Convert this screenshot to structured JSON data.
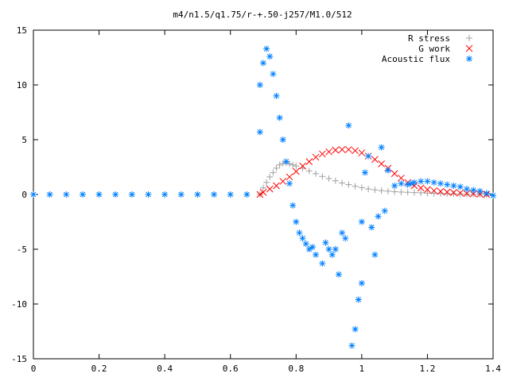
{
  "chart_data": {
    "type": "scatter",
    "title": "m4/n1.5/q1.75/r-+.50-j257/M1.0/512",
    "xlabel": "",
    "ylabel": "",
    "xlim": [
      0,
      1.4
    ],
    "ylim": [
      -15,
      15
    ],
    "x_ticks": [
      0,
      0.2,
      0.4,
      0.6,
      0.8,
      1,
      1.2,
      1.4
    ],
    "x_tick_labels": [
      "0",
      "0.2",
      "0.4",
      "0.6",
      "0.8",
      "1",
      "1.2",
      "1.4"
    ],
    "y_ticks": [
      -15,
      -10,
      -5,
      0,
      5,
      10,
      15
    ],
    "y_tick_labels": [
      "-15",
      "-10",
      "-5",
      "0",
      "5",
      "10",
      "15"
    ],
    "grid": false,
    "legend_position": "top-right",
    "series": [
      {
        "name": "R stress",
        "marker": "+",
        "color": "#a0a0a0",
        "x": [
          0.69,
          0.7,
          0.71,
          0.72,
          0.73,
          0.74,
          0.75,
          0.76,
          0.77,
          0.78,
          0.79,
          0.8,
          0.82,
          0.84,
          0.86,
          0.88,
          0.9,
          0.92,
          0.94,
          0.96,
          0.98,
          1.0,
          1.02,
          1.04,
          1.06,
          1.08,
          1.1,
          1.12,
          1.14,
          1.16,
          1.18,
          1.2,
          1.22,
          1.24,
          1.26,
          1.28,
          1.3,
          1.32,
          1.34,
          1.36,
          1.38
        ],
        "y": [
          0.0,
          0.6,
          1.1,
          1.6,
          2.0,
          2.4,
          2.7,
          2.85,
          2.9,
          2.8,
          2.7,
          2.6,
          2.4,
          2.15,
          1.9,
          1.65,
          1.45,
          1.25,
          1.05,
          0.9,
          0.75,
          0.62,
          0.5,
          0.42,
          0.35,
          0.3,
          0.25,
          0.22,
          0.2,
          0.17,
          0.15,
          0.12,
          0.1,
          0.08,
          0.06,
          0.05,
          0.04,
          0.03,
          0.02,
          0.01,
          0.0
        ]
      },
      {
        "name": "G work",
        "marker": "x",
        "color": "#ff0000",
        "x": [
          0.69,
          0.7,
          0.72,
          0.74,
          0.76,
          0.78,
          0.8,
          0.82,
          0.84,
          0.86,
          0.88,
          0.9,
          0.92,
          0.94,
          0.96,
          0.98,
          1.0,
          1.02,
          1.04,
          1.06,
          1.08,
          1.1,
          1.12,
          1.14,
          1.16,
          1.18,
          1.2,
          1.22,
          1.24,
          1.26,
          1.28,
          1.3,
          1.32,
          1.34,
          1.36,
          1.38
        ],
        "y": [
          0.0,
          0.2,
          0.5,
          0.8,
          1.2,
          1.6,
          2.1,
          2.6,
          3.0,
          3.4,
          3.7,
          3.9,
          4.05,
          4.1,
          4.1,
          4.0,
          3.8,
          3.5,
          3.2,
          2.8,
          2.4,
          1.9,
          1.5,
          1.1,
          0.8,
          0.6,
          0.45,
          0.35,
          0.28,
          0.22,
          0.17,
          0.13,
          0.09,
          0.06,
          0.03,
          0.0
        ]
      },
      {
        "name": "Acoustic flux",
        "marker": "*",
        "color": "#0080ff",
        "x": [
          0.0,
          0.05,
          0.1,
          0.15,
          0.2,
          0.25,
          0.3,
          0.35,
          0.4,
          0.45,
          0.5,
          0.55,
          0.6,
          0.65,
          0.69,
          0.69,
          0.7,
          0.71,
          0.72,
          0.73,
          0.74,
          0.75,
          0.76,
          0.77,
          0.78,
          0.79,
          0.8,
          0.81,
          0.82,
          0.83,
          0.84,
          0.85,
          0.86,
          0.88,
          0.89,
          0.9,
          0.91,
          0.92,
          0.93,
          0.94,
          0.95,
          0.96,
          0.97,
          0.98,
          0.99,
          1.0,
          1.0,
          1.01,
          1.02,
          1.03,
          1.04,
          1.05,
          1.06,
          1.07,
          1.08,
          1.1,
          1.12,
          1.14,
          1.15,
          1.16,
          1.18,
          1.2,
          1.22,
          1.24,
          1.26,
          1.28,
          1.3,
          1.32,
          1.34,
          1.36,
          1.38,
          1.4
        ],
        "y": [
          0,
          0,
          0,
          0,
          0,
          0,
          0,
          0,
          0,
          0,
          0,
          0,
          0,
          0,
          5.7,
          10.0,
          12.0,
          13.3,
          12.6,
          11.0,
          9.0,
          7.0,
          5.0,
          3.0,
          1.0,
          -1.0,
          -2.5,
          -3.5,
          -4.0,
          -4.5,
          -5.0,
          -4.8,
          -5.5,
          -6.3,
          -4.4,
          -5.0,
          -5.5,
          -5.0,
          -7.3,
          -3.5,
          -4.0,
          6.3,
          -13.8,
          -12.3,
          -9.6,
          -2.5,
          -8.1,
          2.0,
          3.5,
          -3.0,
          -5.5,
          -2.0,
          4.3,
          -1.5,
          2.2,
          0.8,
          1.0,
          0.9,
          1.0,
          1.1,
          1.2,
          1.2,
          1.1,
          1.0,
          0.9,
          0.8,
          0.7,
          0.5,
          0.4,
          0.3,
          0.1,
          -0.1
        ]
      }
    ]
  }
}
